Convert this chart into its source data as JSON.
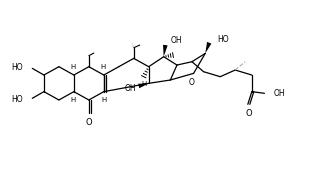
{
  "background": "#ffffff",
  "line_color": "#000000",
  "lw": 0.9,
  "dashed_color": "#aaaaaa",
  "figsize": [
    3.34,
    1.7
  ],
  "dpi": 100,
  "xlim": [
    0,
    10
  ],
  "ylim": [
    0,
    5
  ]
}
